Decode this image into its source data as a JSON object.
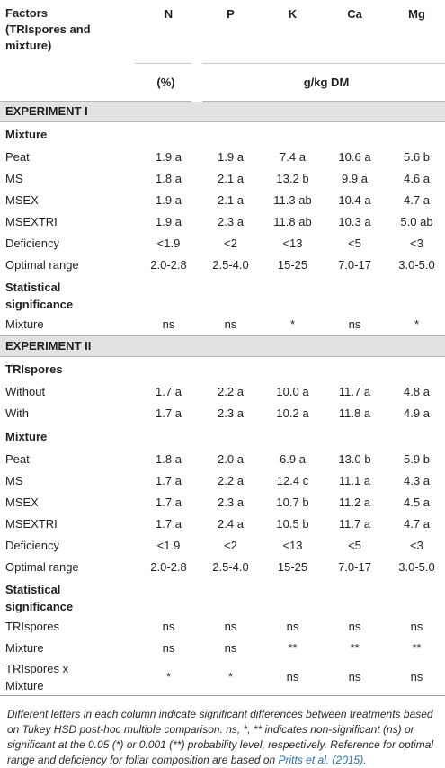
{
  "headers": {
    "factor": [
      "Factors",
      "(TRIspores and",
      "mixture)"
    ],
    "columns": [
      "N",
      "P",
      "K",
      "Ca",
      "Mg"
    ],
    "unit_pct": "(%)",
    "unit_gkg": "g/kg DM"
  },
  "experiment1": {
    "title": "EXPERIMENT I",
    "mixture_label": "Mixture",
    "rows": [
      {
        "label": "Peat",
        "values": [
          "1.9 a",
          "1.9 a",
          "7.4 a",
          "10.6 a",
          "5.6 b"
        ]
      },
      {
        "label": "MS",
        "values": [
          "1.8 a",
          "2.1 a",
          "13.2 b",
          "9.9 a",
          "4.6 a"
        ]
      },
      {
        "label": "MSEX",
        "values": [
          "1.9 a",
          "2.1 a",
          "11.3 ab",
          "10.4 a",
          "4.7 a"
        ]
      },
      {
        "label": "MSEXTRI",
        "values": [
          "1.9 a",
          "2.3 a",
          "11.8 ab",
          "10.3 a",
          "5.0 ab"
        ]
      },
      {
        "label": "Deficiency",
        "values": [
          "<1.9",
          "<2",
          "<13",
          "<5",
          "<3"
        ]
      },
      {
        "label": "Optimal range",
        "values": [
          "2.0-2.8",
          "2.5-4.0",
          "15-25",
          "7.0-17",
          "3.0-5.0"
        ]
      }
    ],
    "stat_label": [
      "Statistical",
      "significance"
    ],
    "stat_rows": [
      {
        "label": "Mixture",
        "values": [
          "ns",
          "ns",
          "*",
          "ns",
          "*"
        ]
      }
    ]
  },
  "experiment2": {
    "title": "EXPERIMENT II",
    "trispores_label": "TRIspores",
    "trispores_rows": [
      {
        "label": "Without",
        "values": [
          "1.7 a",
          "2.2 a",
          "10.0 a",
          "11.7 a",
          "4.8 a"
        ]
      },
      {
        "label": "With",
        "values": [
          "1.7 a",
          "2.3 a",
          "10.2 a",
          "11.8 a",
          "4.9 a"
        ]
      }
    ],
    "mixture_label": "Mixture",
    "mixture_rows": [
      {
        "label": "Peat",
        "values": [
          "1.8 a",
          "2.0 a",
          "6.9 a",
          "13.0 b",
          "5.9 b"
        ]
      },
      {
        "label": "MS",
        "values": [
          "1.7 a",
          "2.2 a",
          "12.4 c",
          "11.1 a",
          "4.3 a"
        ]
      },
      {
        "label": "MSEX",
        "values": [
          "1.7 a",
          "2.3 a",
          "10.7 b",
          "11.2 a",
          "4.5 a"
        ]
      },
      {
        "label": "MSEXTRI",
        "values": [
          "1.7 a",
          "2.4 a",
          "10.5 b",
          "11.7 a",
          "4.7 a"
        ]
      },
      {
        "label": "Deficiency",
        "values": [
          "<1.9",
          "<2",
          "<13",
          "<5",
          "<3"
        ]
      },
      {
        "label": "Optimal range",
        "values": [
          "2.0-2.8",
          "2.5-4.0",
          "15-25",
          "7.0-17",
          "3.0-5.0"
        ]
      }
    ],
    "stat_label": [
      "Statistical",
      "significance"
    ],
    "stat_rows": [
      {
        "label": "TRIspores",
        "values": [
          "ns",
          "ns",
          "ns",
          "ns",
          "ns"
        ]
      },
      {
        "label": "Mixture",
        "values": [
          "ns",
          "ns",
          "**",
          "**",
          "**"
        ]
      },
      {
        "label": "TRIspores x Mixture",
        "label_lines": [
          "TRIspores x",
          "Mixture"
        ],
        "values": [
          "*",
          "*",
          "ns",
          "ns",
          "ns"
        ]
      }
    ]
  },
  "footnote": {
    "text": "Different letters in each column indicate significant differences between treatments based on Tukey HSD post-hoc multiple comparison. ns, *, ** indicates non-significant (ns) or significant at the 0.05 (*) or 0.001 (**) probability level, respectively. Reference for optimal range and deficiency for foliar composition are based on ",
    "reference": "Pritts et al. (2015)",
    "end": "."
  }
}
